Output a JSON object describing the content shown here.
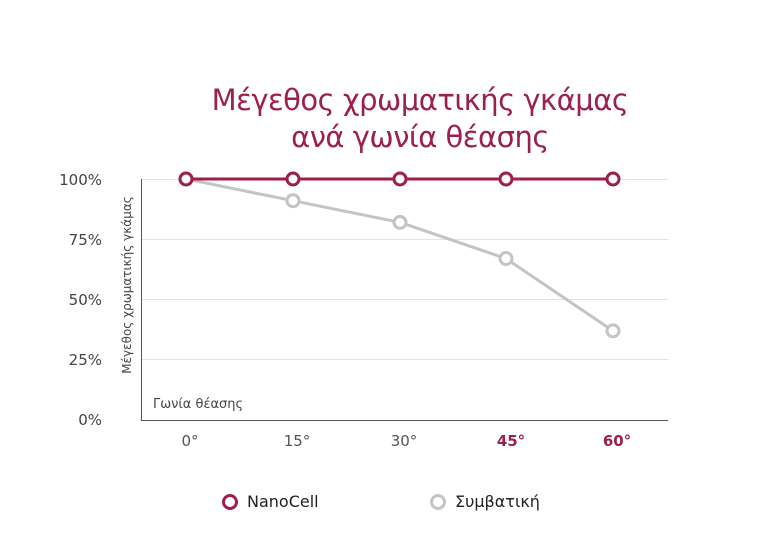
{
  "chart_data": {
    "type": "line",
    "title": "Μέγεθος χρωματικής γκάμας ανά γωνία θέασης",
    "title_lines": [
      "Μέγεθος χρωματικής γκάμας",
      "ανά γωνία θέασης"
    ],
    "xlabel": "Γωνία θέασης",
    "ylabel": "Μέγεθος χρωματικής γκάμας",
    "categories": [
      "0°",
      "15°",
      "30°",
      "45°",
      "60°"
    ],
    "highlighted_categories": [
      "45°",
      "60°"
    ],
    "y_ticks": [
      "100%",
      "75%",
      "50%",
      "25%",
      "0%"
    ],
    "ylim": [
      0,
      100
    ],
    "grid": true,
    "legend_position": "bottom",
    "series": [
      {
        "name": "NanoCell",
        "color": "#9c1f4d",
        "values": [
          100,
          100,
          100,
          100,
          100
        ]
      },
      {
        "name": "Συμβατική",
        "color": "#c4c4c4",
        "values": [
          100,
          91,
          82,
          67,
          37
        ]
      }
    ]
  },
  "colors": {
    "accent": "#9c1f4d",
    "secondary": "#c4c4c4"
  }
}
